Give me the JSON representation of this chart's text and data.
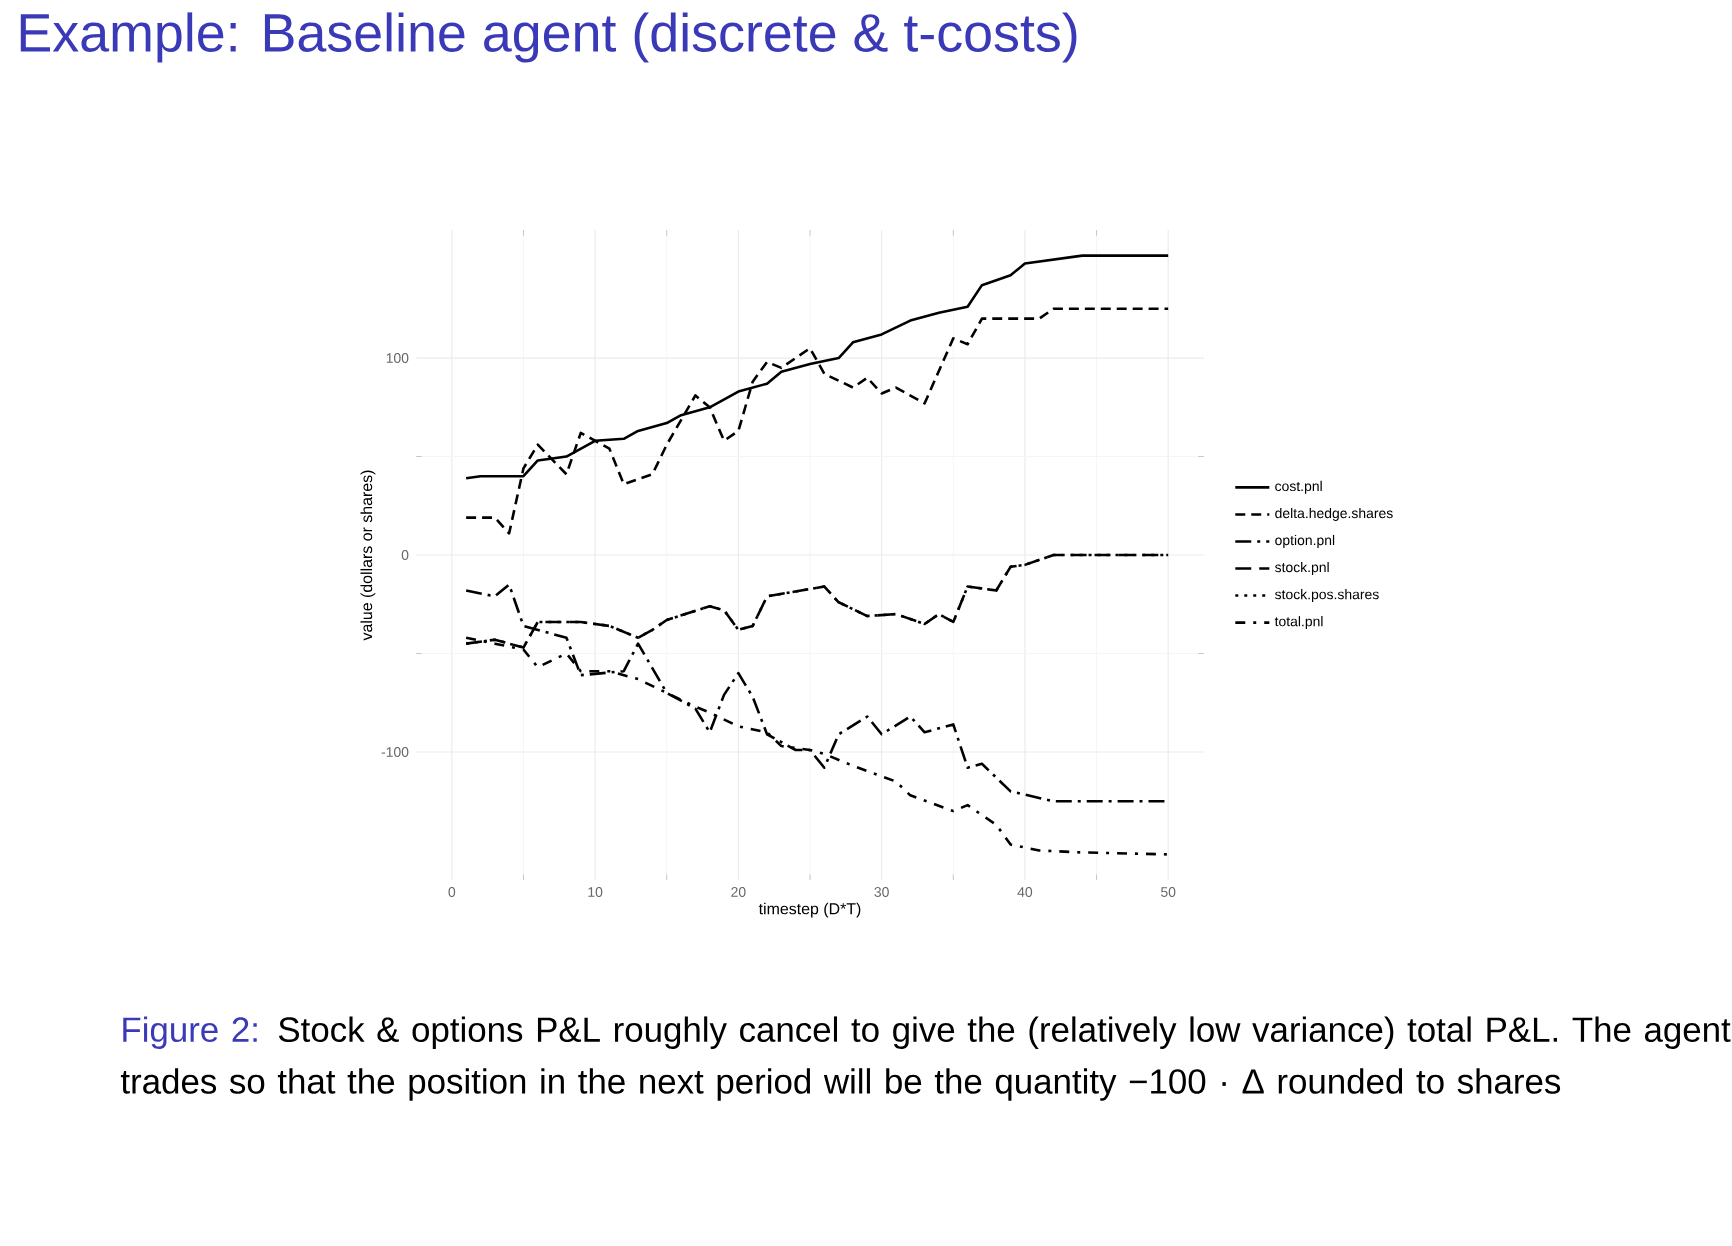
{
  "chart_data": {
    "type": "line",
    "title": "Example: Baseline agent (discrete & t-costs)",
    "xlabel": "timestep (D*T)",
    "ylabel": "value (dollars or shares)",
    "annotations": [
      "Figure 2:",
      "Stock & options P&L roughly cancel to give the (relatively low variance) total P&L. The agent trades so that the position in the next period will be the quantity −100 · Δ rounded to shares"
    ],
    "xlim": [
      -2.5,
      52.5
    ],
    "ylim": [
      -165,
      165
    ],
    "xticks": [
      0,
      10,
      20,
      30,
      40,
      50
    ],
    "yticks": [
      -100,
      0,
      100
    ],
    "grid": true,
    "legend": "right",
    "series": [
      {
        "name": "cost.pnl",
        "color": "#000000",
        "line_style": "solid",
        "x": [
          1,
          2,
          5,
          6,
          8,
          10,
          12,
          13,
          15,
          16,
          18,
          20,
          22,
          23,
          25,
          27,
          28,
          30,
          32,
          34,
          36,
          37,
          39,
          40,
          44,
          50
        ],
        "values": [
          39,
          40,
          40,
          48,
          50,
          58,
          59,
          63,
          67,
          71,
          75,
          83,
          87,
          93,
          97,
          100,
          108,
          112,
          119,
          123,
          126,
          137,
          142,
          148,
          152,
          152
        ]
      },
      {
        "name": "delta.hedge.shares",
        "color": "#000000",
        "line_style": "dashed",
        "x": [
          1,
          3,
          4,
          5,
          6,
          8,
          9,
          11,
          12,
          14,
          15,
          17,
          18,
          19,
          20,
          21,
          22,
          23,
          25,
          26,
          28,
          29,
          30,
          31,
          33,
          35,
          36,
          37,
          39,
          41,
          42,
          50
        ],
        "values": [
          19,
          19,
          11,
          44,
          56,
          41,
          62,
          54,
          36,
          41,
          56,
          81,
          75,
          58,
          63,
          88,
          98,
          95,
          105,
          92,
          85,
          90,
          82,
          85,
          77,
          110,
          107,
          120,
          120,
          120,
          125,
          125
        ]
      },
      {
        "name": "option.pnl",
        "color": "#000000",
        "line_style": "longdashdot",
        "x": [
          1,
          3,
          4,
          5,
          8,
          9,
          12,
          13,
          15,
          17,
          18,
          19,
          20,
          21,
          22,
          24,
          25,
          26,
          27,
          29,
          30,
          32,
          33,
          35,
          36,
          37,
          39,
          42,
          50
        ],
        "values": [
          -18,
          -21,
          -15,
          -36,
          -42,
          -61,
          -59,
          -45,
          -70,
          -78,
          -90,
          -71,
          -60,
          -72,
          -91,
          -99,
          -99,
          -108,
          -91,
          -82,
          -91,
          -82,
          -90,
          -86,
          -108,
          -106,
          -120,
          -125,
          -125
        ]
      },
      {
        "name": "stock.pnl",
        "color": "#000000",
        "line_style": "longdashed",
        "x": [
          1,
          3,
          5,
          6,
          9,
          11,
          13,
          14,
          15,
          18,
          19,
          20,
          21,
          22,
          26,
          27,
          29,
          31,
          33,
          34,
          35,
          36,
          38,
          39,
          40,
          42,
          50
        ],
        "values": [
          -45,
          -43,
          -47,
          -34,
          -34,
          -36,
          -42,
          -38,
          -33,
          -26,
          -28,
          -38,
          -36,
          -21,
          -16,
          -24,
          -31,
          -30,
          -35,
          -30,
          -34,
          -16,
          -18,
          -6,
          -5,
          0,
          0
        ]
      },
      {
        "name": "stock.pos.shares",
        "color": "#000000",
        "line_style": "dotted",
        "x": [
          1,
          3,
          5,
          6,
          9,
          11,
          13,
          14,
          15,
          18,
          19,
          20,
          21,
          22,
          26,
          27,
          29,
          31,
          33,
          34,
          35,
          36,
          38,
          39,
          40,
          42,
          50
        ],
        "values": [
          -45,
          -43,
          -47,
          -34,
          -34,
          -36,
          -42,
          -38,
          -33,
          -26,
          -28,
          -38,
          -36,
          -21,
          -16,
          -24,
          -31,
          -30,
          -35,
          -30,
          -34,
          -16,
          -18,
          -6,
          -5,
          0,
          0
        ]
      },
      {
        "name": "total.pnl",
        "color": "#000000",
        "line_style": "dashdot",
        "x": [
          1,
          3,
          5,
          6,
          8,
          9,
          11,
          13,
          15,
          17,
          18,
          20,
          22,
          23,
          25,
          26,
          28,
          31,
          32,
          35,
          36,
          38,
          39,
          41,
          44,
          50
        ],
        "values": [
          -42,
          -45,
          -48,
          -57,
          -50,
          -59,
          -59,
          -63,
          -70,
          -77,
          -80,
          -87,
          -90,
          -97,
          -99,
          -101,
          -107,
          -115,
          -122,
          -130,
          -127,
          -137,
          -147,
          -150,
          -151,
          -152
        ]
      }
    ]
  }
}
